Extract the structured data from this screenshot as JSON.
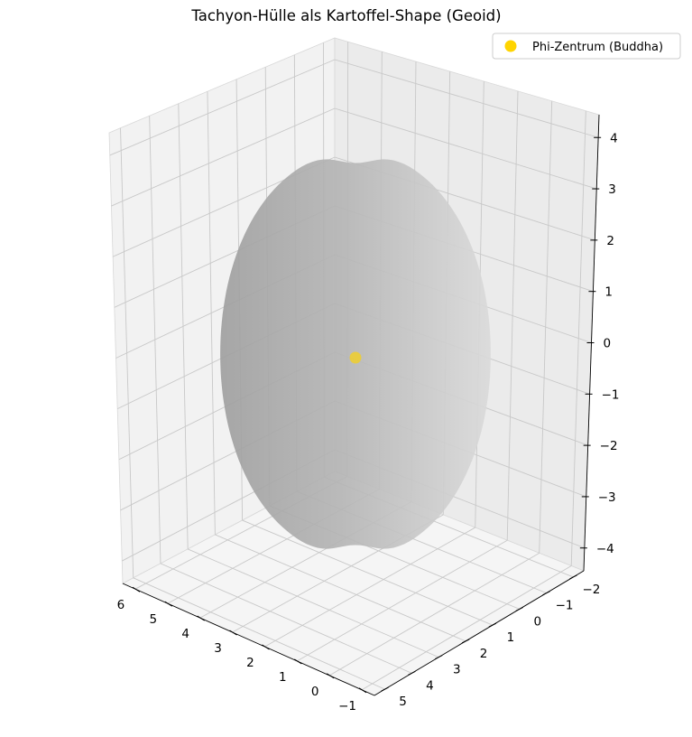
{
  "chart_data": {
    "type": "scatter",
    "projection": "3d",
    "title": "Tachyon-Hülle als Kartoffel-Shape (Geoid)",
    "xlabel": "",
    "ylabel": "",
    "zlabel": "",
    "x_ticks": [
      "6",
      "5",
      "4",
      "3",
      "2",
      "1",
      "0",
      "−1"
    ],
    "y_ticks": [
      "−2",
      "−1",
      "0",
      "1",
      "2",
      "3",
      "4",
      "5"
    ],
    "z_ticks": [
      "4",
      "3",
      "2",
      "1",
      "0",
      "−1",
      "−2",
      "−3",
      "−4"
    ],
    "xlim": [
      -1,
      6
    ],
    "ylim": [
      -2,
      5
    ],
    "zlim": [
      -4,
      4
    ],
    "grid": true,
    "legend_position": "top-right",
    "surface": {
      "shape": "geoid",
      "color": "#b9b9b9",
      "opacity": 0.9,
      "z_range": [
        -3.5,
        3.5
      ]
    },
    "series": [
      {
        "name": "Phi-Zentrum (Buddha)",
        "marker": "circle",
        "color": "#ffd400",
        "x": [
          0
        ],
        "y": [
          0
        ],
        "z": [
          0
        ]
      }
    ]
  }
}
